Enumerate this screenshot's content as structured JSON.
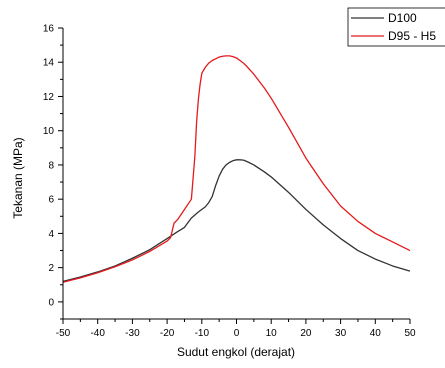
{
  "colors": {
    "D100": "#333333",
    "D95_H5": "#e41a1c",
    "axis": "#000000"
  },
  "chart_data": {
    "type": "line",
    "title": "",
    "xlabel": "Sudut engkol (derajat)",
    "ylabel": "Tekanan (MPa)",
    "xlim": [
      -50,
      50
    ],
    "ylim": [
      -1,
      16
    ],
    "xticks": [
      -50,
      -40,
      -30,
      -20,
      -10,
      0,
      10,
      20,
      30,
      40,
      50
    ],
    "yticks": [
      0,
      2,
      4,
      6,
      8,
      10,
      12,
      14,
      16
    ],
    "grid": false,
    "legend_position": "top-right",
    "series": [
      {
        "name": "D100",
        "color": "#333333",
        "x": [
          -50,
          -45,
          -40,
          -35,
          -30,
          -25,
          -20,
          -17,
          -15,
          -13,
          -11,
          -9,
          -8,
          -7,
          -6,
          -5,
          -4,
          -3,
          -2,
          -1,
          0,
          1,
          2,
          3,
          5,
          8,
          10,
          15,
          20,
          25,
          30,
          35,
          40,
          45,
          50
        ],
        "y": [
          1.2,
          1.45,
          1.75,
          2.1,
          2.55,
          3.05,
          3.7,
          4.1,
          4.35,
          4.9,
          5.25,
          5.55,
          5.8,
          6.15,
          6.8,
          7.35,
          7.75,
          8.0,
          8.15,
          8.25,
          8.3,
          8.3,
          8.28,
          8.2,
          8.0,
          7.6,
          7.3,
          6.4,
          5.4,
          4.5,
          3.7,
          3.0,
          2.5,
          2.1,
          1.8
        ]
      },
      {
        "name": "D95 - H5",
        "color": "#e41a1c",
        "x": [
          -50,
          -45,
          -40,
          -35,
          -30,
          -25,
          -20,
          -19,
          -18,
          -17,
          -16,
          -15,
          -14,
          -13,
          -12,
          -11.5,
          -11,
          -10.5,
          -10,
          -9,
          -8,
          -7,
          -6,
          -5,
          -4,
          -3,
          -2,
          -1,
          0,
          1,
          2,
          3,
          5,
          8,
          10,
          15,
          20,
          25,
          30,
          35,
          40,
          45,
          50
        ],
        "y": [
          1.15,
          1.4,
          1.7,
          2.05,
          2.45,
          2.95,
          3.55,
          3.75,
          4.6,
          4.8,
          5.1,
          5.4,
          5.7,
          6.0,
          8.5,
          10.5,
          11.8,
          12.7,
          13.35,
          13.7,
          13.95,
          14.1,
          14.2,
          14.3,
          14.35,
          14.37,
          14.37,
          14.33,
          14.25,
          14.1,
          13.95,
          13.75,
          13.3,
          12.5,
          11.9,
          10.2,
          8.4,
          6.9,
          5.6,
          4.7,
          4.0,
          3.5,
          3.0
        ]
      }
    ]
  }
}
